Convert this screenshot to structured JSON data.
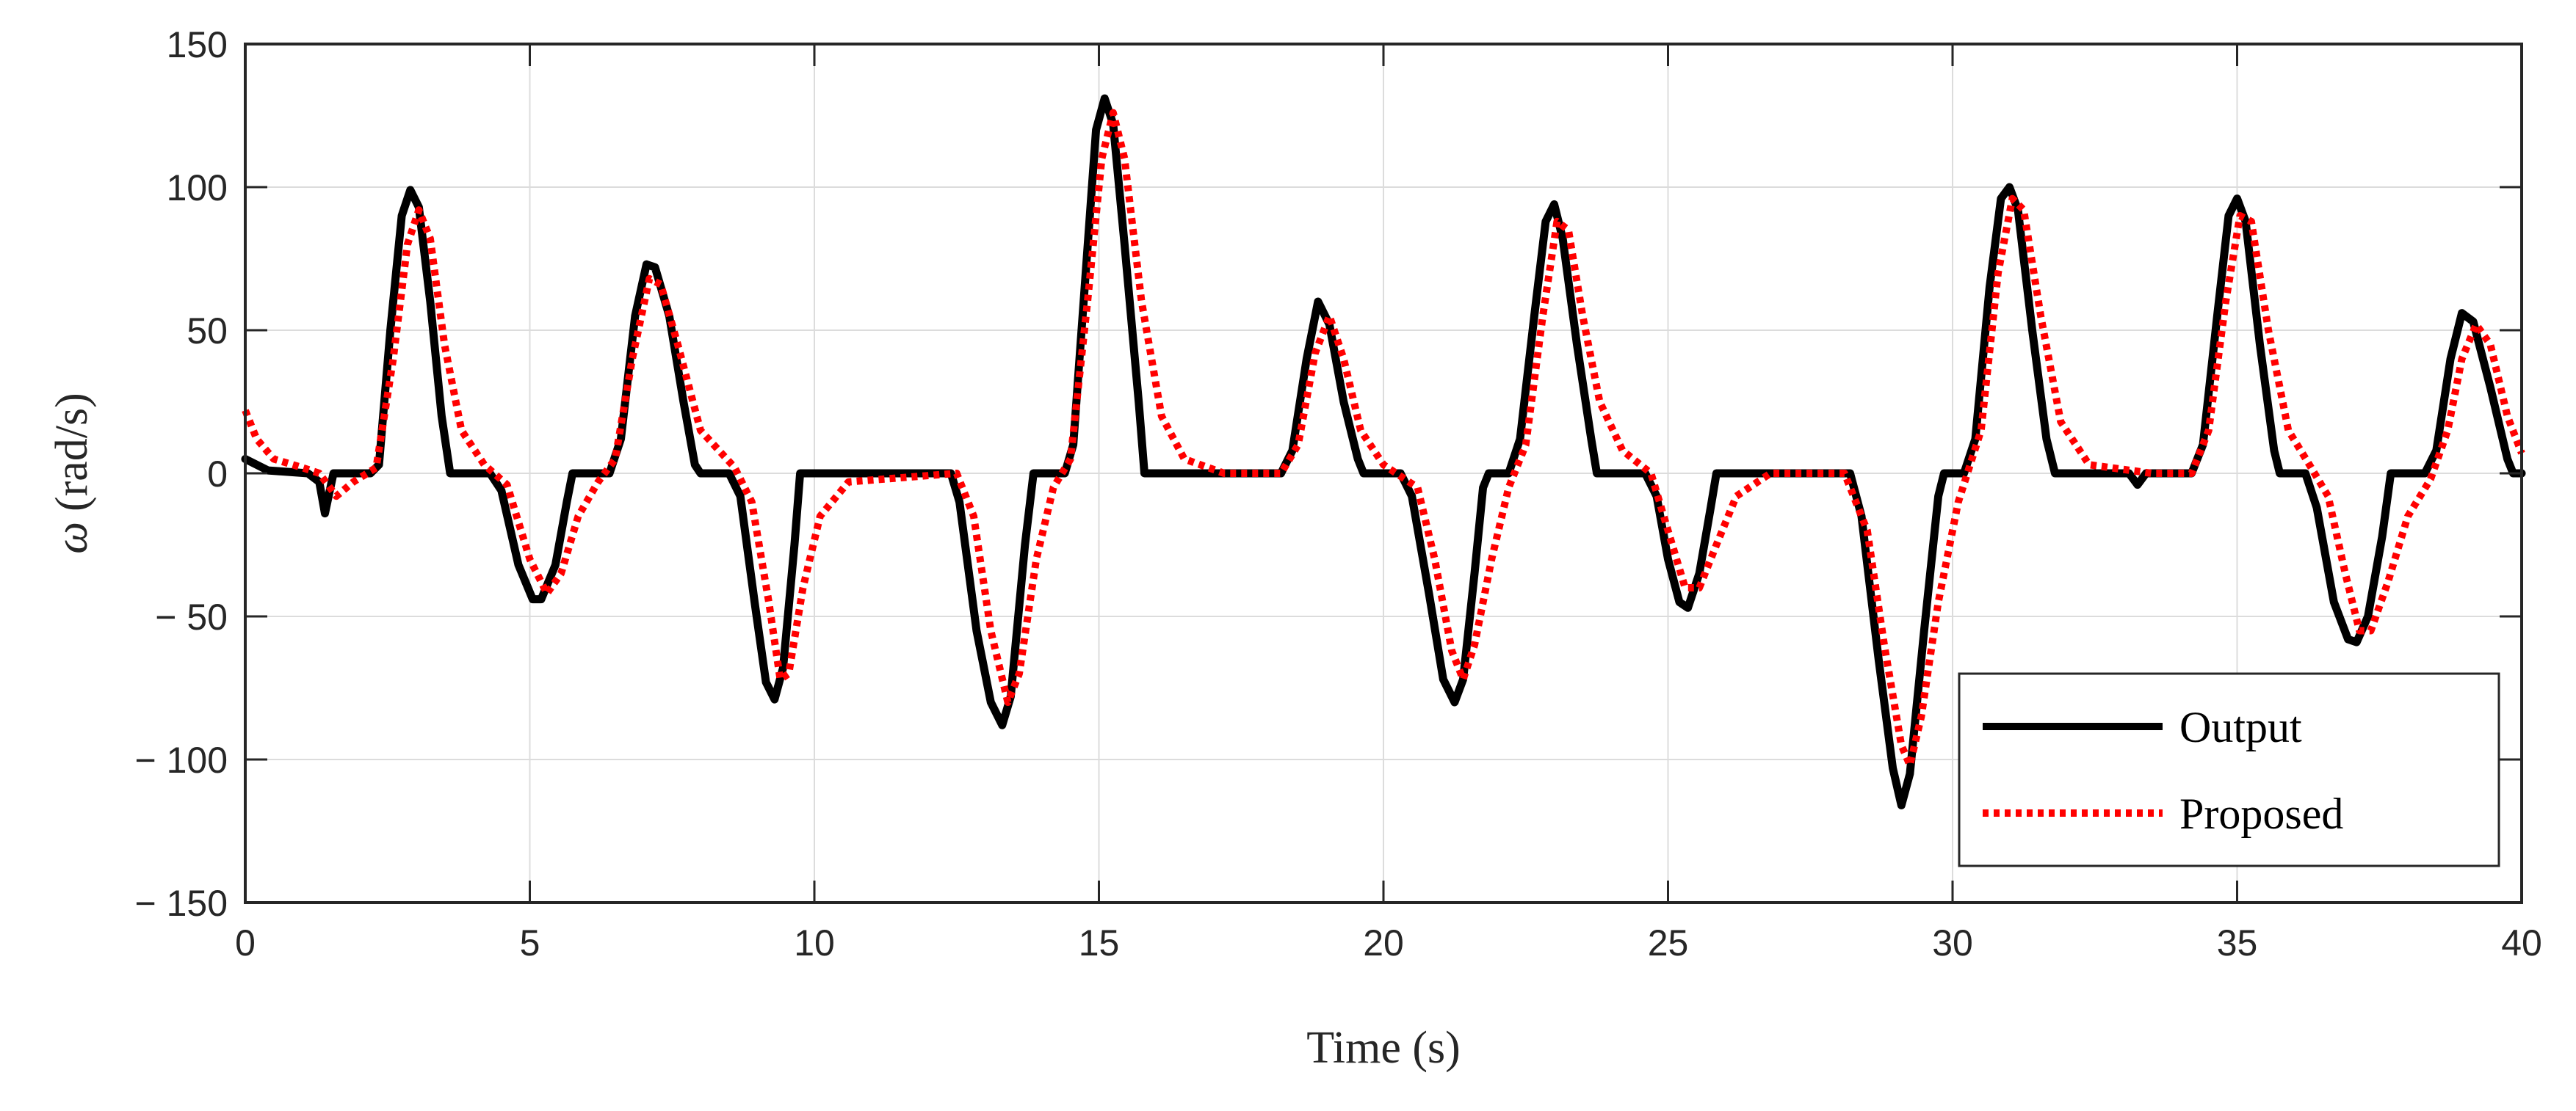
{
  "chart_data": {
    "type": "line",
    "title": "",
    "xlabel": "Time (s)",
    "ylabel_symbol": "ω",
    "ylabel_unit": "(rad/s)",
    "xlim": [
      0,
      40
    ],
    "ylim": [
      -150,
      150
    ],
    "x_ticks": [
      0,
      5,
      10,
      15,
      20,
      25,
      30,
      35,
      40
    ],
    "x_tick_labels": [
      "0",
      "5",
      "10",
      "15",
      "20",
      "25",
      "30",
      "35",
      "40"
    ],
    "y_ticks": [
      150,
      100,
      50,
      0,
      -50,
      -100,
      -150
    ],
    "y_tick_labels": [
      "150",
      "100",
      "50",
      "0",
      "− 50",
      "− 100",
      "− 150"
    ],
    "grid": true,
    "legend_position": "bottom-right",
    "series": [
      {
        "name": "Output",
        "color": "#000000",
        "style": "solid",
        "points": [
          [
            0,
            5
          ],
          [
            0.4,
            1
          ],
          [
            1.1,
            0
          ],
          [
            1.3,
            -3
          ],
          [
            1.4,
            -14
          ],
          [
            1.55,
            0
          ],
          [
            2.2,
            0
          ],
          [
            2.35,
            3
          ],
          [
            2.55,
            50
          ],
          [
            2.75,
            90
          ],
          [
            2.9,
            99
          ],
          [
            3.05,
            93
          ],
          [
            3.25,
            60
          ],
          [
            3.45,
            20
          ],
          [
            3.6,
            0
          ],
          [
            4.3,
            0
          ],
          [
            4.5,
            -6
          ],
          [
            4.8,
            -32
          ],
          [
            5.05,
            -44
          ],
          [
            5.2,
            -44
          ],
          [
            5.45,
            -32
          ],
          [
            5.65,
            -10
          ],
          [
            5.75,
            0
          ],
          [
            6.4,
            0
          ],
          [
            6.6,
            12
          ],
          [
            6.85,
            55
          ],
          [
            7.05,
            73
          ],
          [
            7.2,
            72
          ],
          [
            7.45,
            55
          ],
          [
            7.7,
            25
          ],
          [
            7.9,
            3
          ],
          [
            8.0,
            0
          ],
          [
            8.5,
            0
          ],
          [
            8.7,
            -8
          ],
          [
            8.95,
            -45
          ],
          [
            9.15,
            -73
          ],
          [
            9.3,
            -79
          ],
          [
            9.45,
            -68
          ],
          [
            9.65,
            -25
          ],
          [
            9.75,
            0
          ],
          [
            12.4,
            0
          ],
          [
            12.55,
            -10
          ],
          [
            12.85,
            -55
          ],
          [
            13.1,
            -80
          ],
          [
            13.3,
            -88
          ],
          [
            13.45,
            -78
          ],
          [
            13.7,
            -25
          ],
          [
            13.85,
            0
          ],
          [
            14.4,
            0
          ],
          [
            14.55,
            10
          ],
          [
            14.75,
            65
          ],
          [
            14.95,
            120
          ],
          [
            15.1,
            131
          ],
          [
            15.25,
            122
          ],
          [
            15.45,
            80
          ],
          [
            15.7,
            25
          ],
          [
            15.8,
            0
          ],
          [
            18.2,
            0
          ],
          [
            18.4,
            8
          ],
          [
            18.65,
            40
          ],
          [
            18.85,
            60
          ],
          [
            19.05,
            52
          ],
          [
            19.3,
            25
          ],
          [
            19.55,
            5
          ],
          [
            19.65,
            0
          ],
          [
            20.3,
            0
          ],
          [
            20.5,
            -8
          ],
          [
            20.8,
            -42
          ],
          [
            21.05,
            -72
          ],
          [
            21.25,
            -80
          ],
          [
            21.4,
            -72
          ],
          [
            21.6,
            -35
          ],
          [
            21.75,
            -5
          ],
          [
            21.85,
            0
          ],
          [
            22.2,
            0
          ],
          [
            22.4,
            12
          ],
          [
            22.65,
            55
          ],
          [
            22.85,
            88
          ],
          [
            23.0,
            94
          ],
          [
            23.15,
            82
          ],
          [
            23.4,
            45
          ],
          [
            23.65,
            12
          ],
          [
            23.75,
            0
          ],
          [
            24.6,
            0
          ],
          [
            24.8,
            -8
          ],
          [
            25.0,
            -30
          ],
          [
            25.2,
            -45
          ],
          [
            25.35,
            -47
          ],
          [
            25.55,
            -35
          ],
          [
            25.75,
            -12
          ],
          [
            25.85,
            0
          ],
          [
            28.2,
            0
          ],
          [
            28.4,
            -15
          ],
          [
            28.7,
            -65
          ],
          [
            28.95,
            -103
          ],
          [
            29.1,
            -116
          ],
          [
            29.25,
            -105
          ],
          [
            29.5,
            -55
          ],
          [
            29.75,
            -8
          ],
          [
            29.85,
            0
          ],
          [
            30.2,
            0
          ],
          [
            30.4,
            12
          ],
          [
            30.65,
            65
          ],
          [
            30.85,
            96
          ],
          [
            31.0,
            100
          ],
          [
            31.15,
            92
          ],
          [
            31.4,
            50
          ],
          [
            31.65,
            12
          ],
          [
            31.8,
            0
          ],
          [
            33.1,
            0
          ],
          [
            33.25,
            -4
          ],
          [
            33.4,
            0
          ],
          [
            34.2,
            0
          ],
          [
            34.4,
            10
          ],
          [
            34.65,
            55
          ],
          [
            34.85,
            90
          ],
          [
            35.0,
            96
          ],
          [
            35.15,
            88
          ],
          [
            35.4,
            45
          ],
          [
            35.65,
            8
          ],
          [
            35.75,
            0
          ],
          [
            36.2,
            0
          ],
          [
            36.4,
            -12
          ],
          [
            36.7,
            -45
          ],
          [
            36.95,
            -58
          ],
          [
            37.1,
            -59
          ],
          [
            37.3,
            -50
          ],
          [
            37.55,
            -22
          ],
          [
            37.7,
            0
          ],
          [
            38.3,
            0
          ],
          [
            38.5,
            8
          ],
          [
            38.75,
            40
          ],
          [
            38.95,
            56
          ],
          [
            39.15,
            53
          ],
          [
            39.45,
            30
          ],
          [
            39.75,
            5
          ],
          [
            39.85,
            0
          ],
          [
            40.0,
            0
          ]
        ]
      },
      {
        "name": "Proposed",
        "color": "#ff0000",
        "style": "dotted",
        "points": [
          [
            0,
            22
          ],
          [
            0.2,
            12
          ],
          [
            0.5,
            5
          ],
          [
            1.0,
            2
          ],
          [
            1.3,
            0
          ],
          [
            1.6,
            -8
          ],
          [
            1.9,
            -3
          ],
          [
            2.3,
            2
          ],
          [
            2.6,
            40
          ],
          [
            2.85,
            80
          ],
          [
            3.05,
            92
          ],
          [
            3.25,
            82
          ],
          [
            3.5,
            45
          ],
          [
            3.8,
            15
          ],
          [
            4.2,
            3
          ],
          [
            4.6,
            -4
          ],
          [
            5.0,
            -30
          ],
          [
            5.3,
            -42
          ],
          [
            5.55,
            -35
          ],
          [
            5.85,
            -15
          ],
          [
            6.2,
            -3
          ],
          [
            6.5,
            5
          ],
          [
            6.8,
            40
          ],
          [
            7.1,
            68
          ],
          [
            7.3,
            66
          ],
          [
            7.6,
            45
          ],
          [
            8.0,
            15
          ],
          [
            8.6,
            2
          ],
          [
            8.9,
            -10
          ],
          [
            9.2,
            -45
          ],
          [
            9.4,
            -72
          ],
          [
            9.55,
            -70
          ],
          [
            9.8,
            -40
          ],
          [
            10.1,
            -15
          ],
          [
            10.6,
            -3
          ],
          [
            12.5,
            0
          ],
          [
            12.8,
            -15
          ],
          [
            13.1,
            -55
          ],
          [
            13.4,
            -80
          ],
          [
            13.6,
            -70
          ],
          [
            13.9,
            -30
          ],
          [
            14.2,
            -5
          ],
          [
            14.5,
            5
          ],
          [
            14.8,
            60
          ],
          [
            15.05,
            110
          ],
          [
            15.25,
            126
          ],
          [
            15.45,
            110
          ],
          [
            15.75,
            60
          ],
          [
            16.1,
            20
          ],
          [
            16.5,
            5
          ],
          [
            17.2,
            0
          ],
          [
            18.2,
            0
          ],
          [
            18.5,
            10
          ],
          [
            18.8,
            42
          ],
          [
            19.05,
            55
          ],
          [
            19.3,
            40
          ],
          [
            19.6,
            15
          ],
          [
            20.0,
            3
          ],
          [
            20.6,
            -5
          ],
          [
            20.9,
            -30
          ],
          [
            21.2,
            -62
          ],
          [
            21.4,
            -72
          ],
          [
            21.6,
            -60
          ],
          [
            21.9,
            -30
          ],
          [
            22.2,
            -5
          ],
          [
            22.5,
            10
          ],
          [
            22.8,
            55
          ],
          [
            23.05,
            88
          ],
          [
            23.25,
            85
          ],
          [
            23.5,
            55
          ],
          [
            23.8,
            25
          ],
          [
            24.2,
            8
          ],
          [
            24.7,
            0
          ],
          [
            25.0,
            -20
          ],
          [
            25.3,
            -40
          ],
          [
            25.55,
            -40
          ],
          [
            25.85,
            -25
          ],
          [
            26.2,
            -8
          ],
          [
            26.8,
            0
          ],
          [
            28.1,
            0
          ],
          [
            28.5,
            -20
          ],
          [
            28.8,
            -60
          ],
          [
            29.1,
            -95
          ],
          [
            29.25,
            -102
          ],
          [
            29.45,
            -85
          ],
          [
            29.75,
            -45
          ],
          [
            30.1,
            -10
          ],
          [
            30.5,
            15
          ],
          [
            30.8,
            70
          ],
          [
            31.05,
            96
          ],
          [
            31.25,
            92
          ],
          [
            31.55,
            55
          ],
          [
            31.9,
            18
          ],
          [
            32.4,
            3
          ],
          [
            33.5,
            0
          ],
          [
            34.2,
            0
          ],
          [
            34.5,
            15
          ],
          [
            34.8,
            60
          ],
          [
            35.05,
            90
          ],
          [
            35.25,
            88
          ],
          [
            35.55,
            50
          ],
          [
            35.9,
            15
          ],
          [
            36.3,
            2
          ],
          [
            36.6,
            -8
          ],
          [
            36.9,
            -35
          ],
          [
            37.15,
            -55
          ],
          [
            37.35,
            -55
          ],
          [
            37.65,
            -38
          ],
          [
            38.0,
            -15
          ],
          [
            38.4,
            -2
          ],
          [
            38.7,
            15
          ],
          [
            38.95,
            40
          ],
          [
            39.2,
            52
          ],
          [
            39.45,
            45
          ],
          [
            39.75,
            20
          ],
          [
            40.0,
            7
          ]
        ]
      }
    ]
  }
}
